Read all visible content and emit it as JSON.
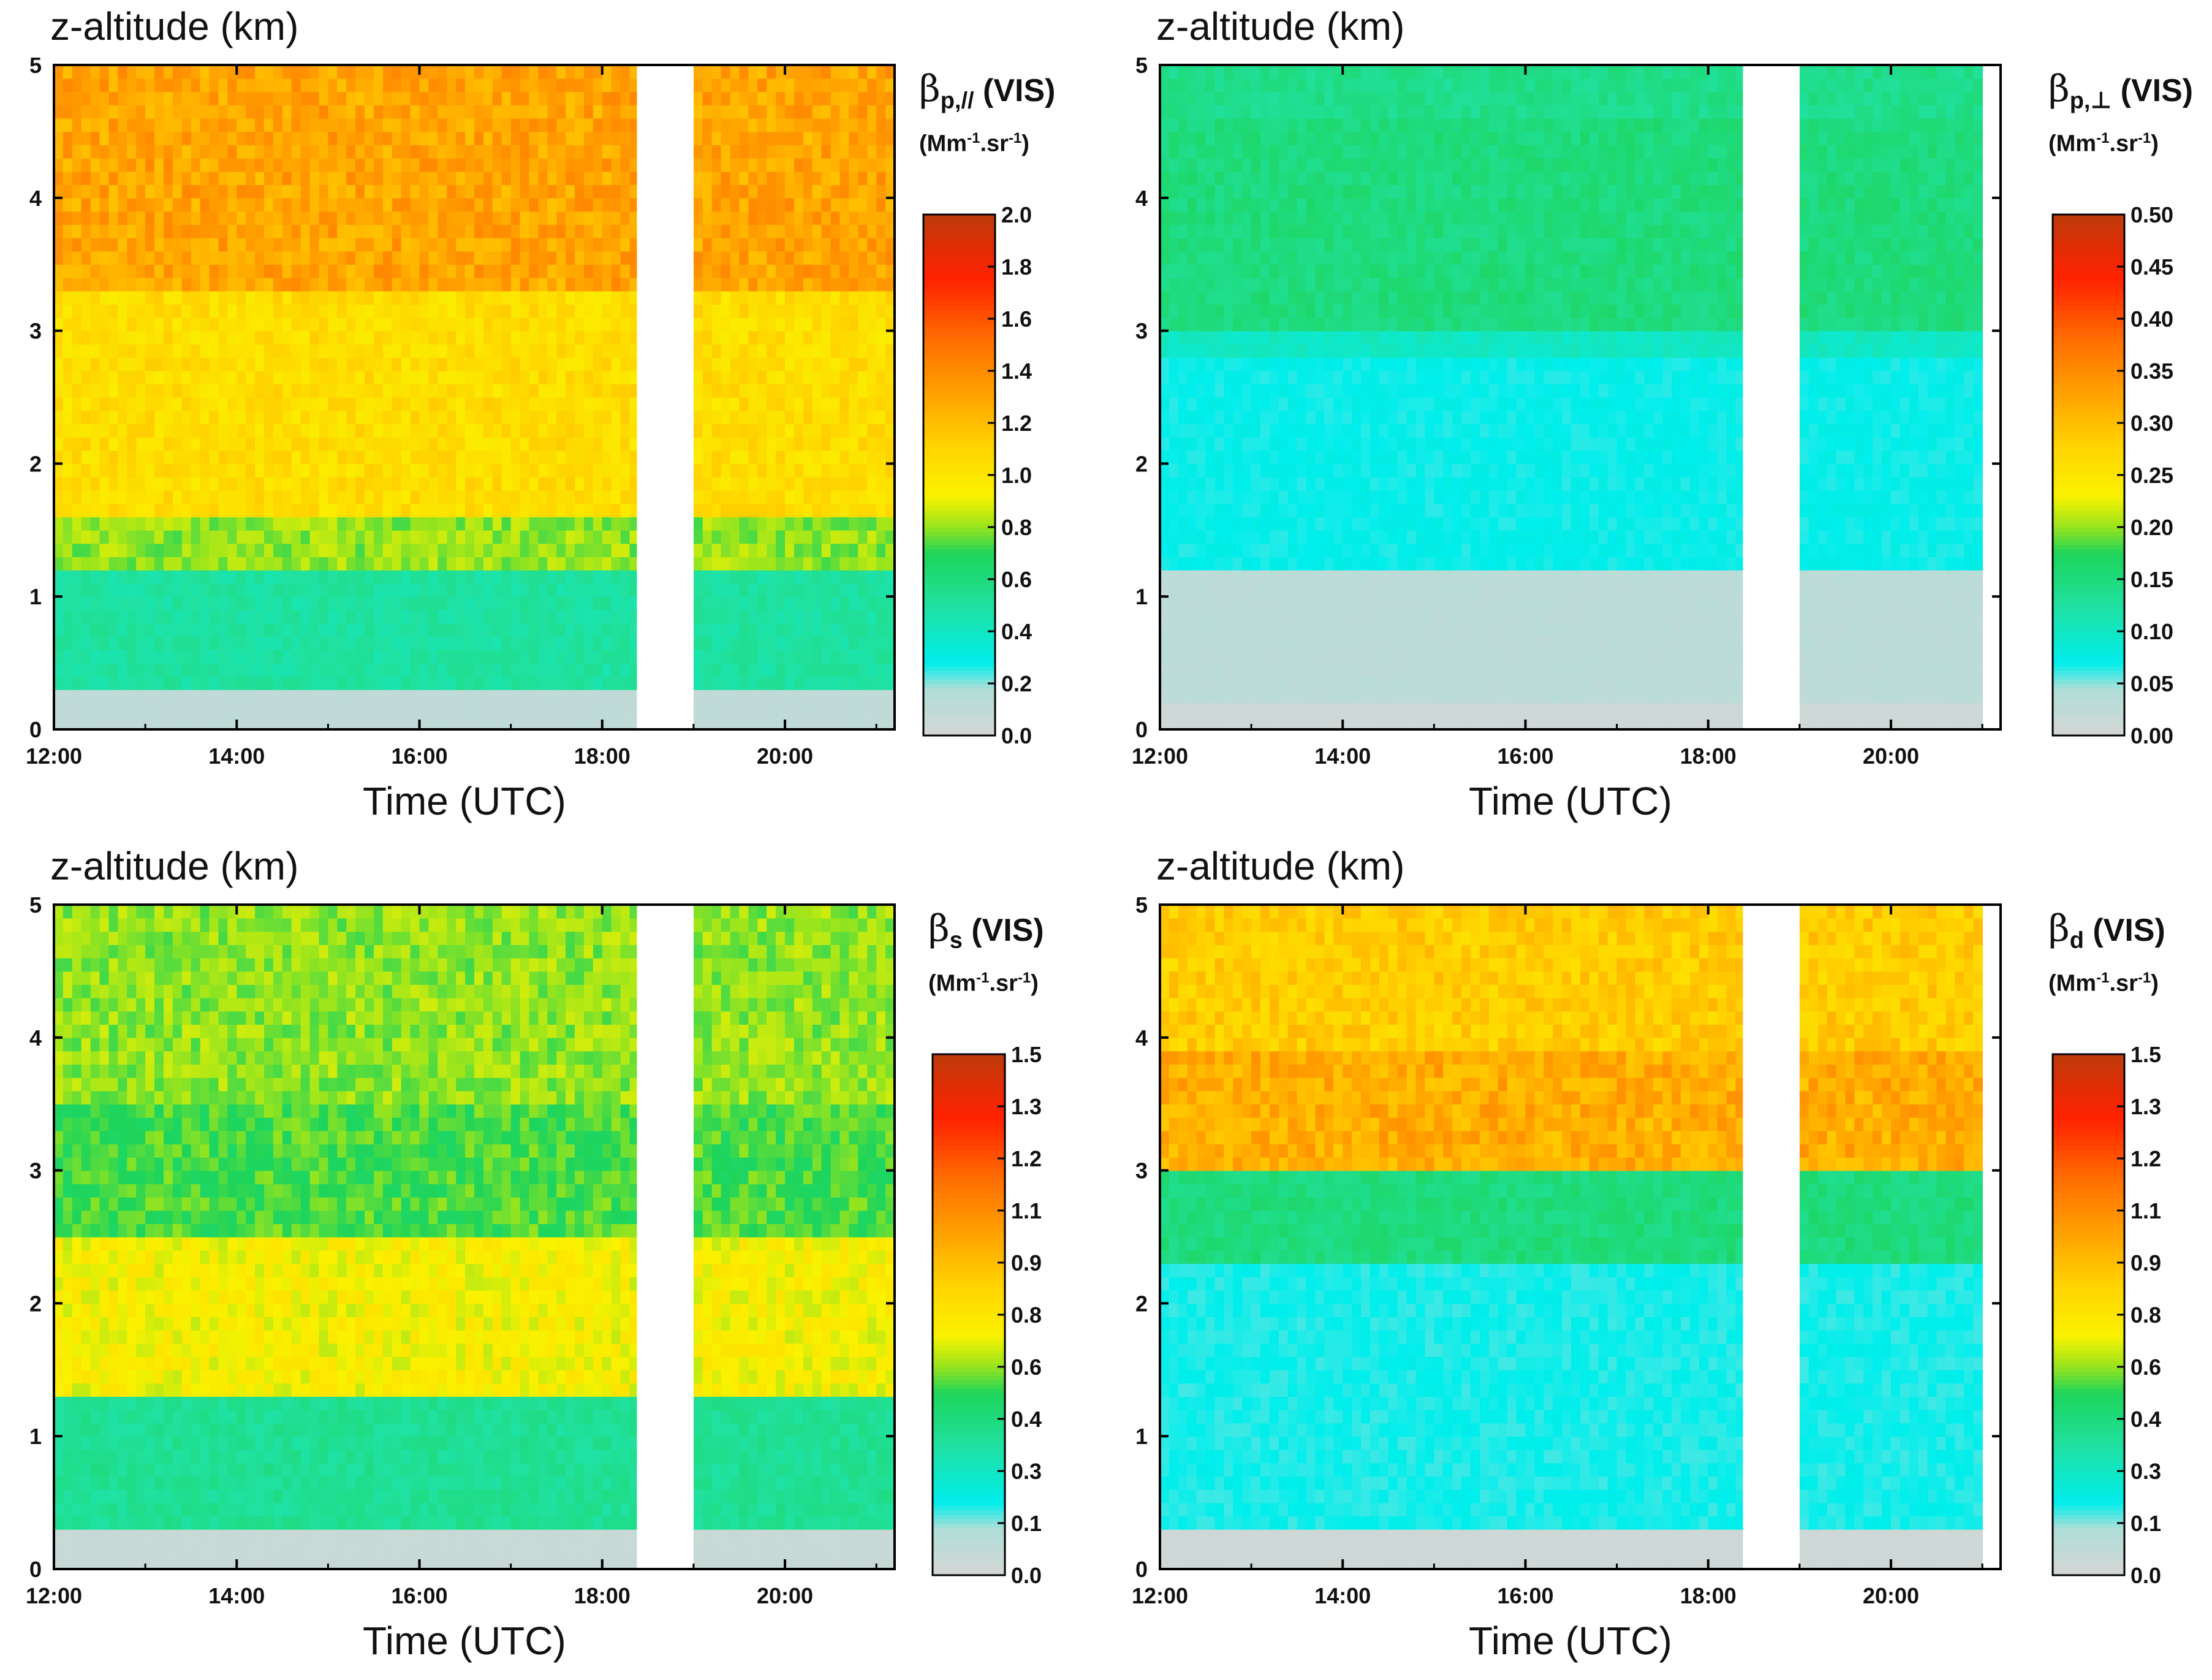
{
  "common": {
    "y_label": "z-altitude (km)",
    "x_label": "Time (UTC)",
    "y_ticks": [
      "0",
      "1",
      "2",
      "3",
      "4",
      "5"
    ],
    "x_ticks": [
      "12:00",
      "14:00",
      "16:00",
      "18:00",
      "20:00"
    ],
    "unit_text": "Mm",
    "unit_exp": "-1",
    "unit_mid": ".sr",
    "unit_close": ")",
    "unit_open": "(",
    "beta": "β",
    "vis": "(VIS)"
  },
  "panels": [
    {
      "sub": "p,//",
      "cb_ticks": [
        "0.0",
        "0.2",
        "0.4",
        "0.6",
        "0.8",
        "1.0",
        "1.2",
        "1.4",
        "1.6",
        "1.8",
        "2.0"
      ]
    },
    {
      "sub": "p,⊥",
      "cb_ticks": [
        "0.00",
        "0.05",
        "0.10",
        "0.15",
        "0.20",
        "0.25",
        "0.30",
        "0.35",
        "0.40",
        "0.45",
        "0.50"
      ]
    },
    {
      "sub": "s",
      "cb_ticks": [
        "0.0",
        "0.1",
        "0.3",
        "0.4",
        "0.6",
        "0.8",
        "0.9",
        "1.1",
        "1.2",
        "1.3",
        "1.5"
      ]
    },
    {
      "sub": "d",
      "cb_ticks": [
        "0.0",
        "0.1",
        "0.3",
        "0.4",
        "0.6",
        "0.8",
        "0.9",
        "1.1",
        "1.2",
        "1.3",
        "1.5"
      ]
    }
  ],
  "chart_data": [
    {
      "type": "heatmap",
      "title": "βp,// (VIS)",
      "colorbar_label": "βp,// (VIS) (Mm-1.sr-1)",
      "xlabel": "Time (UTC)",
      "ylabel": "z-altitude (km)",
      "xlim": [
        12.0,
        21.2
      ],
      "ylim": [
        0,
        5
      ],
      "zlim": [
        0.0,
        2.0
      ],
      "data_gap_hours": [
        18.38,
        19.0
      ],
      "layers": [
        {
          "z_km": [
            0.0,
            0.3
          ],
          "value": 0.1
        },
        {
          "z_km": [
            0.3,
            1.2
          ],
          "value": 0.5
        },
        {
          "z_km": [
            1.2,
            1.6
          ],
          "value": 0.8
        },
        {
          "z_km": [
            1.6,
            3.3
          ],
          "value": 1.05
        },
        {
          "z_km": [
            3.3,
            5.0
          ],
          "value": 1.3
        }
      ]
    },
    {
      "type": "heatmap",
      "title": "βp,⊥ (VIS)",
      "colorbar_label": "βp,⊥ (VIS) (Mm-1.sr-1)",
      "xlabel": "Time (UTC)",
      "ylabel": "z-altitude (km)",
      "xlim": [
        12.0,
        21.2
      ],
      "ylim": [
        0,
        5
      ],
      "zlim": [
        0.0,
        0.5
      ],
      "data_gap_hours": [
        18.38,
        19.0
      ],
      "layers": [
        {
          "z_km": [
            0.0,
            0.25
          ],
          "value": 0.01
        },
        {
          "z_km": [
            0.25,
            1.2
          ],
          "value": 0.03
        },
        {
          "z_km": [
            1.2,
            2.8
          ],
          "value": 0.07
        },
        {
          "z_km": [
            2.8,
            3.0
          ],
          "value": 0.1
        },
        {
          "z_km": [
            3.0,
            4.6
          ],
          "value": 0.15
        },
        {
          "z_km": [
            4.6,
            5.0
          ],
          "value": 0.14
        }
      ]
    },
    {
      "type": "heatmap",
      "title": "βs (VIS)",
      "colorbar_label": "βs (VIS) (Mm-1.sr-1)",
      "xlabel": "Time (UTC)",
      "ylabel": "z-altitude (km)",
      "xlim": [
        12.0,
        21.2
      ],
      "ylim": [
        0,
        5
      ],
      "zlim": [
        0.0,
        1.5
      ],
      "data_gap_hours": [
        18.38,
        19.0
      ],
      "layers": [
        {
          "z_km": [
            0.0,
            0.3
          ],
          "value": 0.05
        },
        {
          "z_km": [
            0.3,
            1.3
          ],
          "value": 0.4
        },
        {
          "z_km": [
            1.3,
            2.5
          ],
          "value": 0.7
        },
        {
          "z_km": [
            2.5,
            3.5
          ],
          "value": 0.55
        },
        {
          "z_km": [
            3.5,
            5.0
          ],
          "value": 0.6
        }
      ]
    },
    {
      "type": "heatmap",
      "title": "βd (VIS)",
      "colorbar_label": "βd (VIS) (Mm-1.sr-1)",
      "xlabel": "Time (UTC)",
      "ylabel": "z-altitude (km)",
      "xlim": [
        12.0,
        21.2
      ],
      "ylim": [
        0,
        5
      ],
      "zlim": [
        0.0,
        1.5
      ],
      "data_gap_hours": [
        18.38,
        19.0
      ],
      "layers": [
        {
          "z_km": [
            0.0,
            0.3
          ],
          "value": 0.03
        },
        {
          "z_km": [
            0.3,
            2.3
          ],
          "value": 0.2
        },
        {
          "z_km": [
            2.3,
            3.0
          ],
          "value": 0.45
        },
        {
          "z_km": [
            3.0,
            3.9
          ],
          "value": 0.95
        },
        {
          "z_km": [
            3.9,
            5.0
          ],
          "value": 0.85
        }
      ]
    }
  ]
}
